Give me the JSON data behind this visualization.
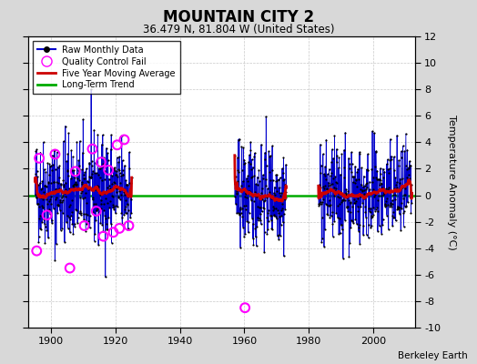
{
  "title": "MOUNTAIN CITY 2",
  "subtitle": "36.479 N, 81.804 W (United States)",
  "ylabel": "Temperature Anomaly (°C)",
  "credit": "Berkeley Earth",
  "xlim": [
    1893,
    2013
  ],
  "ylim": [
    -10,
    12
  ],
  "yticks": [
    -10,
    -8,
    -6,
    -4,
    -2,
    0,
    2,
    4,
    6,
    8,
    10,
    12
  ],
  "xticks": [
    1900,
    1920,
    1940,
    1960,
    1980,
    2000
  ],
  "bg_color": "#d8d8d8",
  "plot_bg_color": "#ffffff",
  "raw_color": "#0000cc",
  "dot_color": "#000000",
  "ma_color": "#cc0000",
  "trend_color": "#00aa00",
  "qc_color": "#ff00ff",
  "seed": 42,
  "seg1_start": 1895,
  "seg1_end": 1925,
  "seg2_start": 1957,
  "seg2_end": 1973,
  "seg3_start": 1983,
  "seg3_end": 2012,
  "qc_years": [
    1895.5,
    1896.3,
    1898.7,
    1901.2,
    1905.8,
    1907.5,
    1910.3,
    1912.8,
    1914.0,
    1915.5,
    1916.2,
    1917.8,
    1919.3,
    1920.5,
    1921.2,
    1922.7,
    1924.1,
    1960.2
  ],
  "qc_vals": [
    -4.2,
    2.8,
    -1.5,
    3.1,
    -5.5,
    1.8,
    -2.3,
    3.5,
    -1.2,
    2.5,
    -3.1,
    1.9,
    -2.8,
    3.8,
    -2.5,
    4.2,
    -2.3,
    -8.5
  ]
}
